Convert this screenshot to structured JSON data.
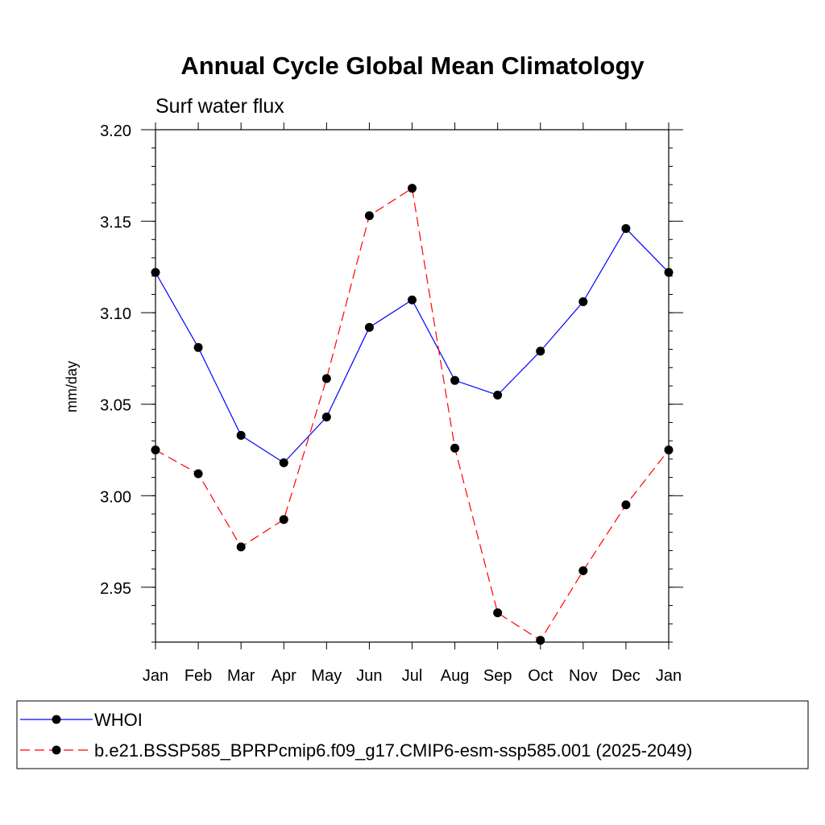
{
  "chart_data": {
    "type": "line",
    "title": "Annual Cycle Global Mean Climatology",
    "subtitle": "Surf water flux",
    "xlabel": "",
    "ylabel": "mm/day",
    "categories": [
      "Jan",
      "Feb",
      "Mar",
      "Apr",
      "May",
      "Jun",
      "Jul",
      "Aug",
      "Sep",
      "Oct",
      "Nov",
      "Dec",
      "Jan"
    ],
    "ylim": [
      2.92,
      3.2
    ],
    "yticks": [
      "3.20",
      "3.15",
      "3.10",
      "3.05",
      "3.00",
      "2.95"
    ],
    "ytick_values": [
      3.2,
      3.15,
      3.1,
      3.05,
      3.0,
      2.95
    ],
    "series": [
      {
        "name": "WHOI",
        "color": "#0000ff",
        "line_style": "solid",
        "values": [
          3.122,
          3.081,
          3.033,
          3.018,
          3.043,
          3.092,
          3.107,
          3.063,
          3.055,
          3.079,
          3.106,
          3.146,
          3.122
        ]
      },
      {
        "name": "b.e21.BSSP585_BPRPcmip6.f09_g17.CMIP6-esm-ssp585.001 (2025-2049)",
        "color": "#ff0000",
        "line_style": "dashed",
        "values": [
          3.025,
          3.012,
          2.972,
          2.987,
          3.064,
          3.153,
          3.168,
          3.026,
          2.936,
          2.921,
          2.959,
          2.995,
          3.025
        ]
      }
    ],
    "legend_position": "bottom"
  }
}
